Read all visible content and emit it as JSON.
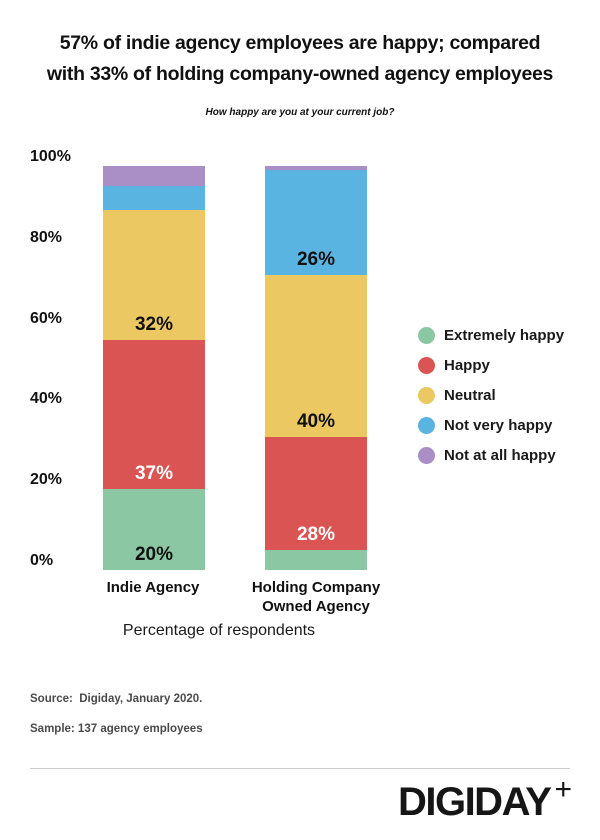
{
  "title": {
    "line1": "57% of indie agency employees are happy; compared",
    "line2": "with 33% of holding company-owned agency employees"
  },
  "subtitle": "How happy are you at your current job?",
  "chart_data": {
    "type": "bar",
    "stacked": true,
    "title": "57% of indie agency employees are happy; compared with 33% of holding company-owned agency employees",
    "subtitle": "How happy are you at your current job?",
    "categories": [
      "Indie Agency",
      "Holding Company Owned Agency"
    ],
    "series": [
      {
        "name": "Extremely happy",
        "color": "#8cc7a4",
        "label_text_color": "#111111",
        "values": [
          20,
          5
        ]
      },
      {
        "name": "Happy",
        "color": "#d95452",
        "label_text_color": "#ffffff",
        "values": [
          37,
          28
        ]
      },
      {
        "name": "Neutral",
        "color": "#ecc862",
        "label_text_color": "#111111",
        "values": [
          32,
          40
        ]
      },
      {
        "name": "Not very happy",
        "color": "#5ab4e2",
        "label_text_color": "#111111",
        "values": [
          6,
          26
        ]
      },
      {
        "name": "Not at all happy",
        "color": "#a98fc6",
        "label_text_color": "#111111",
        "values": [
          5,
          1
        ]
      }
    ],
    "bar_value_label_min": 20,
    "xlabel": "Percentage of respondents",
    "ylabel": "",
    "yticks": [
      "0%",
      "20%",
      "40%",
      "60%",
      "80%",
      "100%"
    ],
    "ylim": [
      0,
      100
    ],
    "grid": false,
    "legend_position": "right"
  },
  "footer": {
    "source": "Source:  Digiday, January 2020.",
    "sample": "Sample: 137 agency employees"
  },
  "logo": {
    "text": "DIGIDAY",
    "plus": "+"
  }
}
